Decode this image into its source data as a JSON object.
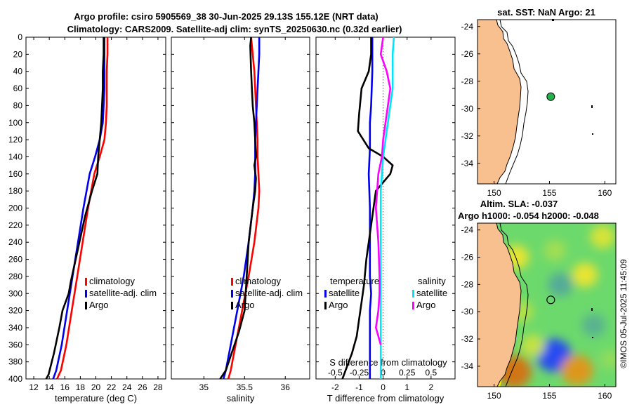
{
  "figure": {
    "title_line1": "Argo profile: csiro 5905569_38 30-Jun-2025 29.13S 155.12E (NRT data)",
    "title_line2": "Climatology: CARS2009. Satellite-adj clim: synTS_20250630.nc (0.32d earlier)",
    "credit": "©IMOS 05-Jul-2025 11:45:09"
  },
  "colors": {
    "climatology": "#ff0000",
    "satellite": "#0000ee",
    "argo": "#000000",
    "sat_salinity": "#00e5ff",
    "argo_salinity": "#ff00ff",
    "land": "#f9c08f",
    "marker": "#22b14c"
  },
  "chart_data": [
    {
      "id": "temperature",
      "type": "line",
      "xlabel": "temperature (deg C)",
      "ylabel": "",
      "xlim": [
        11,
        29
      ],
      "ylim": [
        0,
        400
      ],
      "y_reversed": true,
      "xticks": [
        12,
        14,
        16,
        18,
        20,
        22,
        24,
        26,
        28
      ],
      "yticks": [
        0,
        20,
        40,
        60,
        80,
        100,
        120,
        140,
        160,
        180,
        200,
        220,
        240,
        260,
        280,
        300,
        320,
        340,
        360,
        380,
        400
      ],
      "series": [
        {
          "name": "climatology",
          "color_key": "climatology",
          "x": [
            21.5,
            21.5,
            21.4,
            21.4,
            21.4,
            21.3,
            21.1,
            20.5,
            19.8,
            19.0,
            18.3,
            17.6,
            16.9,
            16.2,
            15.5,
            15.0
          ],
          "y": [
            0,
            20,
            40,
            60,
            80,
            100,
            120,
            140,
            160,
            200,
            240,
            280,
            320,
            360,
            390,
            400
          ]
        },
        {
          "name": "satellite-adj. clim",
          "color_key": "satellite",
          "x": [
            21.1,
            21.1,
            21.1,
            21.1,
            21.0,
            20.9,
            20.5,
            19.9,
            19.2,
            18.4,
            17.7,
            17.0,
            16.3,
            15.6,
            14.9,
            14.5
          ],
          "y": [
            0,
            20,
            40,
            60,
            80,
            100,
            120,
            140,
            160,
            200,
            240,
            280,
            320,
            360,
            390,
            400
          ]
        },
        {
          "name": "Argo",
          "color_key": "argo",
          "x": [
            21.0,
            21.0,
            20.9,
            20.9,
            20.8,
            20.7,
            20.5,
            20.3,
            20.2,
            19.5,
            18.6,
            17.4,
            16.8,
            16.5,
            15.7,
            15.3,
            14.6,
            13.9,
            13.6
          ],
          "y": [
            0,
            20,
            40,
            60,
            80,
            100,
            120,
            140,
            160,
            180,
            210,
            260,
            285,
            300,
            320,
            340,
            370,
            395,
            400
          ]
        }
      ],
      "legend": {
        "placement": "right",
        "entries": [
          "climatology",
          "satellite-adj. clim",
          "Argo"
        ]
      }
    },
    {
      "id": "salinity",
      "type": "line",
      "xlabel": "salinity",
      "xlim": [
        34.6,
        36.3
      ],
      "ylim": [
        0,
        400
      ],
      "y_reversed": true,
      "xticks": [
        35,
        35.5,
        36
      ],
      "xticklabels": [
        "35",
        "35.5",
        "36"
      ],
      "series": [
        {
          "name": "climatology",
          "color_key": "climatology",
          "x": [
            35.58,
            35.6,
            35.62,
            35.63,
            35.64,
            35.65,
            35.66,
            35.66,
            35.67,
            35.68,
            35.67,
            35.62,
            35.55,
            35.47,
            35.39,
            35.33,
            35.3
          ],
          "y": [
            0,
            20,
            40,
            60,
            80,
            100,
            120,
            140,
            160,
            180,
            200,
            240,
            280,
            320,
            360,
            390,
            400
          ]
        },
        {
          "name": "satellite-adj. clim",
          "color_key": "satellite",
          "x": [
            35.68,
            35.68,
            35.67,
            35.66,
            35.65,
            35.64,
            35.63,
            35.63,
            35.63,
            35.62,
            35.6,
            35.55,
            35.49,
            35.41,
            35.33,
            35.27,
            35.24
          ],
          "y": [
            0,
            20,
            40,
            60,
            80,
            100,
            120,
            140,
            160,
            180,
            200,
            240,
            280,
            320,
            360,
            390,
            400
          ]
        },
        {
          "name": "Argo",
          "color_key": "argo",
          "x": [
            35.58,
            35.57,
            35.58,
            35.59,
            35.6,
            35.62,
            35.63,
            35.64,
            35.62,
            35.64,
            35.63,
            35.6,
            35.55,
            35.52,
            35.5,
            35.43,
            35.34,
            35.27,
            35.2
          ],
          "y": [
            0,
            10,
            40,
            60,
            80,
            100,
            120,
            140,
            150,
            165,
            180,
            200,
            240,
            290,
            320,
            345,
            370,
            390,
            400
          ]
        }
      ],
      "legend": {
        "placement": "right",
        "entries": [
          "climatology",
          "satellite-adj. clim",
          "Argo"
        ]
      }
    },
    {
      "id": "difference",
      "type": "line",
      "xlabel": "T difference from climatology",
      "top_xlabel": "S difference from climatology",
      "xlim": [
        -2.8,
        3.0
      ],
      "ylim": [
        0,
        400
      ],
      "y_reversed": true,
      "xticks": [
        -2,
        -1,
        0,
        1,
        2
      ],
      "top_xticks": [
        -0.5,
        -0.25,
        0,
        0.25,
        0.5
      ],
      "top_xticklabels": [
        "-0.5",
        "-0.25",
        "0",
        "0.25",
        "0.5"
      ],
      "top_scale": 4,
      "series": [
        {
          "name": "temperature satellite",
          "color_key": "satellite",
          "x": [
            -0.45,
            -0.45,
            -0.45,
            -0.5,
            -0.55,
            -0.55,
            -0.6,
            -0.55,
            -0.55,
            -0.55,
            -0.5,
            -0.55,
            -0.55,
            -0.55
          ],
          "y": [
            0,
            20,
            40,
            80,
            100,
            130,
            160,
            200,
            240,
            280,
            300,
            320,
            360,
            400
          ]
        },
        {
          "name": "temperature Argo",
          "color_key": "argo",
          "x": [
            -0.5,
            -0.5,
            -0.6,
            -0.9,
            -1.0,
            -1.05,
            -0.6,
            0.0,
            0.4,
            0.3,
            -0.3,
            -0.5,
            -0.7,
            -0.8,
            -0.9,
            -1.0,
            -1.1,
            -1.3,
            -1.5,
            -1.7
          ],
          "y": [
            0,
            20,
            40,
            60,
            90,
            110,
            130,
            140,
            150,
            160,
            180,
            220,
            260,
            290,
            310,
            330,
            350,
            370,
            385,
            400
          ]
        },
        {
          "name": "salinity satellite",
          "color_key": "sat_salinity",
          "x": [
            0.45,
            0.4,
            0.4,
            0.4,
            0.3,
            0.2,
            0.1,
            0.0,
            -0.1,
            -0.1,
            -0.1,
            -0.1,
            -0.1
          ],
          "y": [
            0,
            20,
            40,
            60,
            80,
            100,
            120,
            140,
            180,
            220,
            260,
            320,
            400
          ]
        },
        {
          "name": "salinity Argo",
          "color_key": "argo_salinity",
          "x": [
            0.0,
            -0.1,
            0.15,
            0.3,
            0.2,
            0.1,
            0.0,
            -0.05,
            -0.2,
            -0.3,
            -0.2,
            -0.15,
            -0.15,
            -0.2,
            -0.3,
            -0.1
          ],
          "y": [
            0,
            20,
            40,
            60,
            80,
            100,
            120,
            140,
            160,
            200,
            240,
            280,
            300,
            320,
            340,
            360
          ]
        }
      ],
      "legend_left": {
        "title": "temperature",
        "entries": [
          "satellite",
          "Argo"
        ]
      },
      "legend_right": {
        "title": "salinity",
        "entries": [
          "satellite",
          "Argo"
        ]
      }
    },
    {
      "id": "map_sst",
      "type": "map",
      "title": "sat. SST: NaN Argo: 21",
      "xlim": [
        148.5,
        161
      ],
      "ylim": [
        -35.5,
        -23.5
      ],
      "xticks": [
        150,
        155,
        160
      ],
      "yticks": [
        -24,
        -26,
        -28,
        -30,
        -32,
        -34
      ],
      "float_position": {
        "lon": 155.12,
        "lat": -29.13
      }
    },
    {
      "id": "map_sla",
      "type": "heatmap",
      "title_line1": "Altim. SLA: -0.037",
      "title_line2": "Argo h1000: -0.054 h2000: -0.048",
      "xlim": [
        148.5,
        161
      ],
      "ylim": [
        -35.5,
        -23.5
      ],
      "xticks": [
        150,
        155,
        160
      ],
      "yticks": [
        -24,
        -26,
        -28,
        -30,
        -32,
        -34
      ],
      "float_position": {
        "lon": 155.12,
        "lat": -29.13
      },
      "color_scale": {
        "low": "#1e3cff",
        "zero": "#6cd96c",
        "high": "#c86014"
      },
      "anomaly_blobs": [
        {
          "lon": 152.0,
          "lat": -26.0,
          "value": 0.35
        },
        {
          "lon": 155.5,
          "lat": -25.5,
          "value": 0.15
        },
        {
          "lon": 159.8,
          "lat": -24.5,
          "value": 0.3
        },
        {
          "lon": 156.0,
          "lat": -28.0,
          "value": -0.3
        },
        {
          "lon": 158.2,
          "lat": -27.3,
          "value": 0.35
        },
        {
          "lon": 152.5,
          "lat": -30.0,
          "value": 0.2
        },
        {
          "lon": 159.0,
          "lat": -31.0,
          "value": -0.25
        },
        {
          "lon": 155.4,
          "lat": -33.2,
          "value": -0.9
        },
        {
          "lon": 151.8,
          "lat": -34.4,
          "value": 0.9
        },
        {
          "lon": 157.5,
          "lat": -34.3,
          "value": 0.75
        },
        {
          "lon": 153.5,
          "lat": -32.5,
          "value": 0.25
        },
        {
          "lon": 160.5,
          "lat": -33.5,
          "value": 0.1
        }
      ]
    }
  ]
}
